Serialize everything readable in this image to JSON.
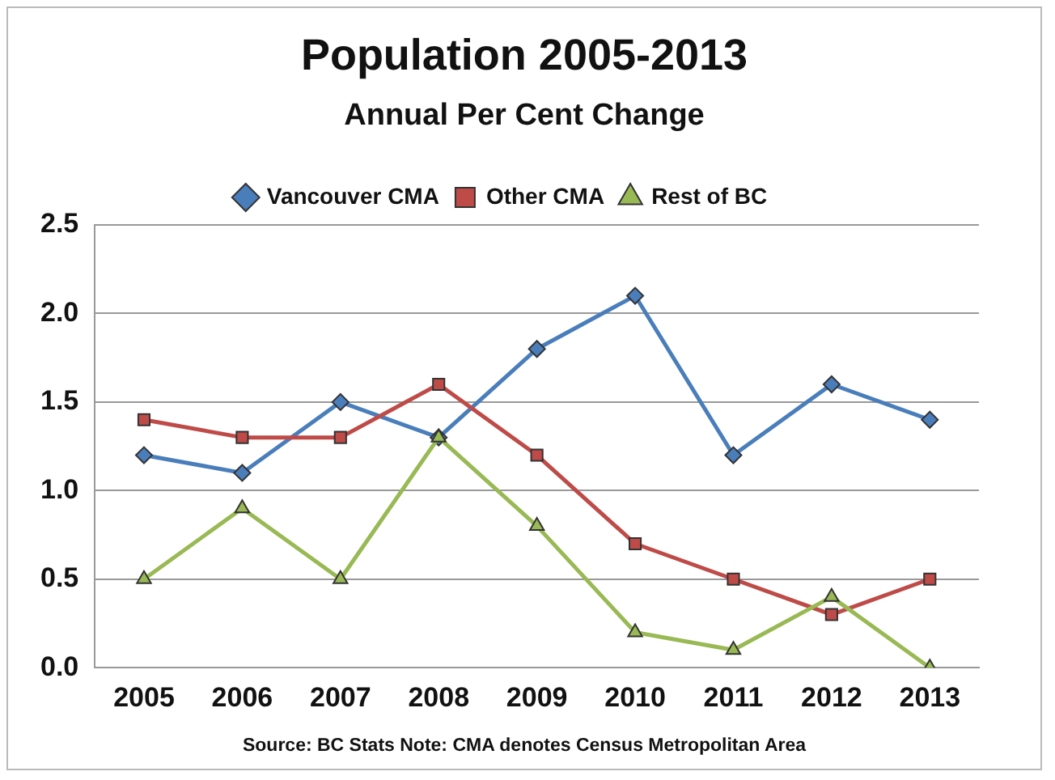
{
  "chart_data": {
    "type": "line",
    "title": "Population 2005-2013",
    "subtitle": "Annual Per Cent Change",
    "categories": [
      "2005",
      "2006",
      "2007",
      "2008",
      "2009",
      "2010",
      "2011",
      "2012",
      "2013"
    ],
    "series": [
      {
        "name": "Vancouver CMA",
        "color": "#4a7ebb",
        "marker": "diamond",
        "values": [
          1.2,
          1.1,
          1.5,
          1.3,
          1.8,
          2.1,
          1.2,
          1.6,
          1.4
        ]
      },
      {
        "name": "Other CMA",
        "color": "#be4b48",
        "marker": "square",
        "values": [
          1.4,
          1.3,
          1.3,
          1.6,
          1.2,
          0.7,
          0.5,
          0.3,
          0.5
        ]
      },
      {
        "name": "Rest of BC",
        "color": "#98b954",
        "marker": "triangle",
        "values": [
          0.5,
          0.9,
          0.5,
          1.3,
          0.8,
          0.2,
          0.1,
          0.4,
          0.0
        ]
      }
    ],
    "ylim": [
      0,
      2.5
    ],
    "yticks": [
      {
        "value": 0,
        "label": "0.0"
      },
      {
        "value": 0.5,
        "label": "0.5"
      },
      {
        "value": 1,
        "label": "1.0"
      },
      {
        "value": 1.5,
        "label": "1.5"
      },
      {
        "value": 2,
        "label": "2.0"
      },
      {
        "value": 2.5,
        "label": "2.5"
      }
    ],
    "grid": "y",
    "legend": "top",
    "line_style": "solid",
    "annotations": [
      "Source: BC Stats Note: CMA denotes Census Metropolitan Area"
    ]
  }
}
